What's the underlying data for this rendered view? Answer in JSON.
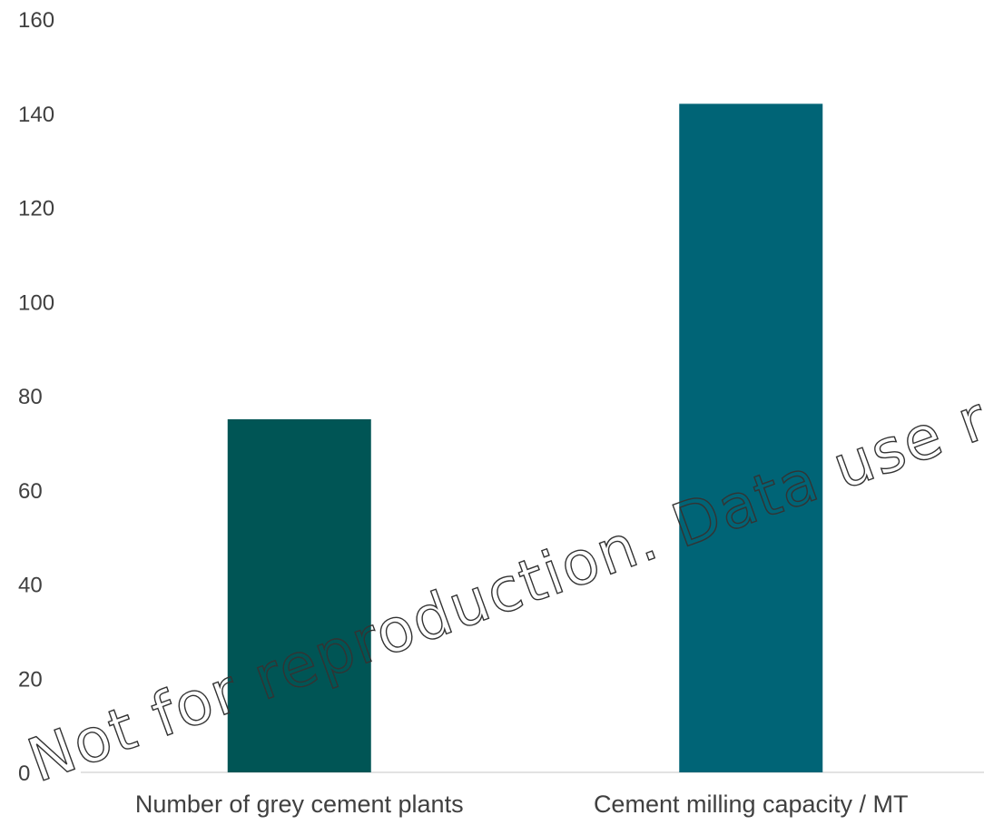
{
  "chart_data": {
    "type": "bar",
    "categories": [
      "Number of grey cement plants",
      "Cement milling capacity / MT"
    ],
    "values": [
      75,
      142
    ],
    "colors": [
      "#005555",
      "#006476"
    ],
    "title": "",
    "xlabel": "",
    "ylabel": "",
    "ylim": [
      0,
      160
    ],
    "yticks": [
      0,
      20,
      40,
      60,
      80,
      100,
      120,
      140,
      160
    ],
    "grid": false,
    "legend": "none"
  },
  "watermark": {
    "text": "Not for reproduction. Data use requ"
  }
}
